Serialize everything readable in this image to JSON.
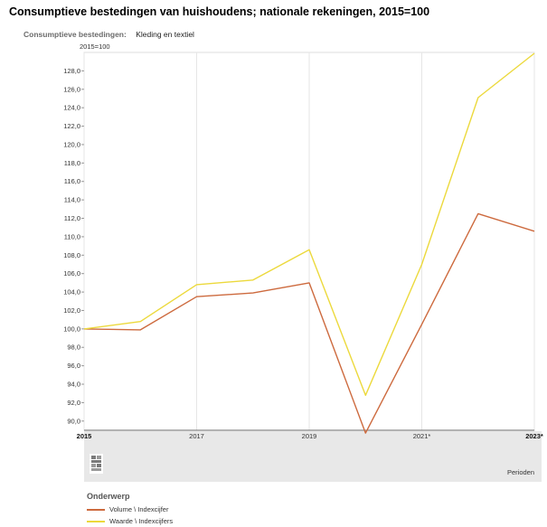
{
  "header": {
    "title": "Consumptieve bestedingen van huishoudens; nationale rekeningen, 2015=100",
    "filter_label": "Consumptieve bestedingen:",
    "filter_value": "Kleding en textiel"
  },
  "colors": {
    "volume": "#cd6a3e",
    "waarde": "#ecd93c",
    "gridline": "#e6e6e6",
    "band": "#e8e8e8"
  },
  "chart_data": {
    "type": "line",
    "unit_label": "2015=100",
    "x_period_label": "Perioden",
    "x": [
      "2015",
      "2016",
      "2017",
      "2018",
      "2019",
      "2020",
      "2021*",
      "2022*",
      "2023*"
    ],
    "x_tick_labels": [
      {
        "label": "2015",
        "index": 0,
        "bold": true
      },
      {
        "label": "2017",
        "index": 2,
        "bold": false
      },
      {
        "label": "2019",
        "index": 4,
        "bold": false
      },
      {
        "label": "2021*",
        "index": 6,
        "bold": false
      },
      {
        "label": "2023*",
        "index": 8,
        "bold": true
      }
    ],
    "ylim": [
      89.0,
      130.0
    ],
    "y_ticks": [
      "90,0",
      "92,0",
      "94,0",
      "96,0",
      "98,0",
      "100,0",
      "102,0",
      "104,0",
      "106,0",
      "108,0",
      "110,0",
      "112,0",
      "114,0",
      "116,0",
      "118,0",
      "120,0",
      "122,0",
      "124,0",
      "126,0",
      "128,0"
    ],
    "y_tick_values": [
      90,
      92,
      94,
      96,
      98,
      100,
      102,
      104,
      106,
      108,
      110,
      112,
      114,
      116,
      118,
      120,
      122,
      124,
      126,
      128
    ],
    "grid": true,
    "legend_position": "bottom",
    "series": [
      {
        "name": "Volume \\ Indexcijfer",
        "color_key": "volume",
        "values": [
          100.0,
          99.9,
          103.5,
          103.9,
          105.0,
          88.7,
          100.5,
          112.5,
          110.6
        ]
      },
      {
        "name": "Waarde \\ Indexcijfers",
        "color_key": "waarde",
        "values": [
          100.0,
          100.8,
          104.8,
          105.3,
          108.6,
          92.8,
          107.0,
          125.1,
          129.9
        ]
      }
    ]
  },
  "legend": {
    "title": "Onderwerp"
  },
  "logo": {
    "icon": "cbs-logo-icon"
  }
}
